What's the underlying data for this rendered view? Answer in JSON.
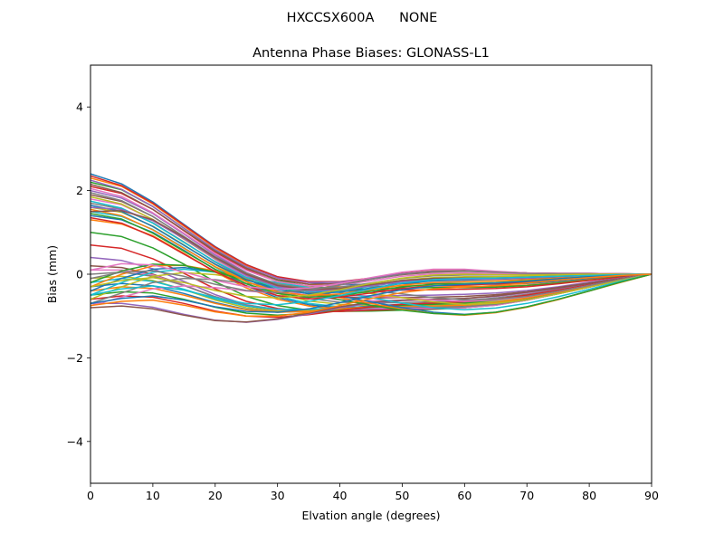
{
  "figure": {
    "suptitle": "HXCCSX600A      NONE"
  },
  "chart_data": {
    "type": "line",
    "title": "Antenna Phase Biases: GLONASS-L1",
    "xlabel": "Elvation angle (degrees)",
    "ylabel": "Bias (mm)",
    "xlim": [
      0,
      90
    ],
    "ylim": [
      -5,
      5
    ],
    "xticks": [
      0,
      10,
      20,
      30,
      40,
      50,
      60,
      70,
      80,
      90
    ],
    "yticks": [
      -4,
      -2,
      0,
      2,
      4
    ],
    "ytick_labels": [
      "−4",
      "−2",
      "0",
      "2",
      "4"
    ],
    "grid": false,
    "legend": "none",
    "palette": [
      "#1f77b4",
      "#ff7f0e",
      "#2ca02c",
      "#d62728",
      "#9467bd",
      "#8c564b",
      "#e377c2",
      "#7f7f7f",
      "#bcbd22",
      "#17becf"
    ],
    "x": [
      0,
      5,
      10,
      15,
      20,
      25,
      30,
      35,
      40,
      45,
      50,
      55,
      60,
      65,
      70,
      75,
      80,
      85,
      90
    ],
    "series": [
      {
        "values": [
          2.4,
          2.16,
          1.73,
          1.19,
          0.66,
          0.23,
          -0.06,
          -0.2,
          -0.25,
          -0.24,
          -0.22,
          -0.22,
          -0.23,
          -0.24,
          -0.22,
          -0.17,
          -0.11,
          -0.05,
          0.0
        ]
      },
      {
        "values": [
          2.3,
          2.1,
          1.68,
          1.15,
          0.63,
          0.2,
          -0.09,
          -0.24,
          -0.3,
          -0.3,
          -0.28,
          -0.28,
          -0.29,
          -0.29,
          -0.26,
          -0.2,
          -0.13,
          -0.06,
          0.0
        ]
      },
      {
        "values": [
          2.2,
          2.02,
          1.62,
          1.1,
          0.58,
          0.15,
          -0.14,
          -0.29,
          -0.35,
          -0.35,
          -0.33,
          -0.32,
          -0.32,
          -0.31,
          -0.27,
          -0.21,
          -0.14,
          -0.06,
          0.0
        ]
      },
      {
        "values": [
          2.1,
          1.93,
          1.55,
          1.04,
          0.53,
          0.11,
          -0.18,
          -0.34,
          -0.4,
          -0.4,
          -0.38,
          -0.37,
          -0.36,
          -0.34,
          -0.3,
          -0.23,
          -0.15,
          -0.07,
          0.0
        ]
      },
      {
        "values": [
          2.0,
          1.82,
          1.45,
          0.96,
          0.46,
          0.04,
          -0.26,
          -0.43,
          -0.51,
          -0.52,
          -0.51,
          -0.5,
          -0.48,
          -0.45,
          -0.39,
          -0.3,
          -0.19,
          -0.09,
          0.0
        ]
      },
      {
        "values": [
          1.9,
          1.74,
          1.38,
          0.9,
          0.41,
          -0.01,
          -0.3,
          -0.47,
          -0.55,
          -0.57,
          -0.56,
          -0.55,
          -0.53,
          -0.49,
          -0.42,
          -0.32,
          -0.21,
          -0.1,
          0.0
        ]
      },
      {
        "values": [
          1.8,
          1.66,
          1.31,
          0.84,
          0.35,
          -0.06,
          -0.35,
          -0.52,
          -0.61,
          -0.63,
          -0.62,
          -0.61,
          -0.58,
          -0.53,
          -0.45,
          -0.35,
          -0.23,
          -0.11,
          0.0
        ]
      },
      {
        "values": [
          1.7,
          1.56,
          1.23,
          0.77,
          0.29,
          -0.12,
          -0.41,
          -0.58,
          -0.67,
          -0.69,
          -0.68,
          -0.66,
          -0.63,
          -0.57,
          -0.48,
          -0.37,
          -0.24,
          -0.11,
          0.0
        ]
      },
      {
        "values": [
          1.6,
          1.48,
          1.15,
          0.7,
          0.23,
          -0.17,
          -0.46,
          -0.64,
          -0.72,
          -0.75,
          -0.74,
          -0.72,
          -0.68,
          -0.62,
          -0.52,
          -0.4,
          -0.26,
          -0.12,
          0.0
        ]
      },
      {
        "values": [
          1.5,
          1.38,
          1.07,
          0.63,
          0.17,
          -0.23,
          -0.52,
          -0.7,
          -0.78,
          -0.8,
          -0.79,
          -0.77,
          -0.72,
          -0.65,
          -0.55,
          -0.42,
          -0.27,
          -0.13,
          0.0
        ]
      },
      {
        "values": [
          1.4,
          1.3,
          1.0,
          0.57,
          0.11,
          -0.28,
          -0.56,
          -0.73,
          -0.81,
          -0.83,
          -0.82,
          -0.8,
          -0.75,
          -0.67,
          -0.56,
          -0.43,
          -0.28,
          -0.13,
          0.0
        ]
      },
      {
        "values": [
          1.3,
          1.2,
          0.92,
          0.5,
          0.05,
          -0.33,
          -0.6,
          -0.76,
          -0.84,
          -0.86,
          -0.85,
          -0.83,
          -0.78,
          -0.7,
          -0.58,
          -0.44,
          -0.29,
          -0.14,
          0.0
        ]
      },
      {
        "values": [
          1.0,
          0.9,
          0.63,
          0.24,
          -0.18,
          -0.53,
          -0.75,
          -0.86,
          -0.89,
          -0.88,
          -0.86,
          -0.84,
          -0.8,
          -0.72,
          -0.6,
          -0.46,
          -0.3,
          -0.14,
          0.0
        ]
      },
      {
        "values": [
          0.7,
          0.62,
          0.37,
          0.02,
          -0.35,
          -0.65,
          -0.82,
          -0.89,
          -0.89,
          -0.86,
          -0.84,
          -0.83,
          -0.8,
          -0.72,
          -0.61,
          -0.46,
          -0.3,
          -0.14,
          0.0
        ]
      },
      {
        "values": [
          0.4,
          0.33,
          0.13,
          -0.17,
          -0.49,
          -0.73,
          -0.85,
          -0.88,
          -0.86,
          -0.83,
          -0.82,
          -0.82,
          -0.8,
          -0.73,
          -0.62,
          -0.47,
          -0.31,
          -0.15,
          0.0
        ]
      },
      {
        "values": [
          0.2,
          0.16,
          0.0,
          -0.26,
          -0.55,
          -0.76,
          -0.86,
          -0.87,
          -0.84,
          -0.81,
          -0.8,
          -0.81,
          -0.8,
          -0.74,
          -0.62,
          -0.47,
          -0.31,
          -0.15,
          0.0
        ]
      },
      {
        "values": [
          0.1,
          0.1,
          -0.02,
          -0.26,
          -0.54,
          -0.75,
          -0.85,
          -0.86,
          -0.84,
          -0.81,
          -0.8,
          -0.81,
          -0.8,
          -0.74,
          -0.62,
          -0.47,
          -0.31,
          -0.15,
          0.0
        ]
      },
      {
        "values": [
          0.0,
          0.05,
          -0.05,
          -0.27,
          -0.54,
          -0.74,
          -0.84,
          -0.85,
          -0.82,
          -0.79,
          -0.78,
          -0.79,
          -0.78,
          -0.72,
          -0.61,
          -0.46,
          -0.3,
          -0.15,
          0.0
        ]
      },
      {
        "values": [
          -0.1,
          -0.05,
          -0.15,
          -0.37,
          -0.62,
          -0.8,
          -0.88,
          -0.87,
          -0.82,
          -0.77,
          -0.74,
          -0.73,
          -0.71,
          -0.65,
          -0.54,
          -0.41,
          -0.27,
          -0.13,
          0.0
        ]
      },
      {
        "values": [
          -0.2,
          -0.1,
          -0.17,
          -0.36,
          -0.59,
          -0.76,
          -0.84,
          -0.84,
          -0.8,
          -0.77,
          -0.76,
          -0.76,
          -0.74,
          -0.68,
          -0.57,
          -0.43,
          -0.28,
          -0.14,
          0.0
        ]
      },
      {
        "values": [
          -0.3,
          -0.22,
          -0.28,
          -0.46,
          -0.68,
          -0.84,
          -0.91,
          -0.89,
          -0.82,
          -0.76,
          -0.72,
          -0.7,
          -0.67,
          -0.61,
          -0.51,
          -0.39,
          -0.25,
          -0.12,
          0.0
        ]
      },
      {
        "values": [
          -0.4,
          -0.3,
          -0.34,
          -0.5,
          -0.7,
          -0.85,
          -0.91,
          -0.89,
          -0.83,
          -0.78,
          -0.76,
          -0.76,
          -0.74,
          -0.68,
          -0.57,
          -0.43,
          -0.28,
          -0.14,
          0.0
        ]
      },
      {
        "values": [
          -0.5,
          -0.42,
          -0.45,
          -0.6,
          -0.79,
          -0.93,
          -0.98,
          -0.94,
          -0.86,
          -0.79,
          -0.74,
          -0.72,
          -0.69,
          -0.62,
          -0.52,
          -0.4,
          -0.26,
          -0.13,
          0.0
        ]
      },
      {
        "values": [
          -0.6,
          -0.52,
          -0.55,
          -0.7,
          -0.88,
          -1.0,
          -1.03,
          -0.97,
          -0.87,
          -0.78,
          -0.72,
          -0.69,
          -0.66,
          -0.6,
          -0.5,
          -0.38,
          -0.25,
          -0.12,
          0.0
        ]
      },
      {
        "values": [
          -0.7,
          -0.7,
          -0.79,
          -0.96,
          -1.1,
          -1.15,
          -1.08,
          -0.95,
          -0.8,
          -0.69,
          -0.63,
          -0.61,
          -0.58,
          -0.53,
          -0.44,
          -0.34,
          -0.22,
          -0.11,
          0.0
        ]
      },
      {
        "values": [
          -0.8,
          -0.76,
          -0.83,
          -0.98,
          -1.11,
          -1.14,
          -1.07,
          -0.93,
          -0.78,
          -0.67,
          -0.62,
          -0.6,
          -0.58,
          -0.52,
          -0.43,
          -0.33,
          -0.22,
          -0.11,
          0.0
        ]
      },
      {
        "values": [
          -0.75,
          -0.55,
          -0.35,
          -0.28,
          -0.32,
          -0.4,
          -0.46,
          -0.49,
          -0.5,
          -0.52,
          -0.56,
          -0.62,
          -0.65,
          -0.62,
          -0.54,
          -0.41,
          -0.27,
          -0.13,
          0.0
        ]
      },
      {
        "values": [
          -0.7,
          -0.45,
          -0.2,
          -0.1,
          -0.13,
          -0.22,
          -0.28,
          -0.32,
          -0.35,
          -0.4,
          -0.47,
          -0.56,
          -0.61,
          -0.6,
          -0.53,
          -0.41,
          -0.27,
          -0.13,
          0.0
        ]
      },
      {
        "values": [
          -0.6,
          -0.3,
          -0.05,
          0.04,
          -0.01,
          -0.12,
          -0.22,
          -0.31,
          -0.38,
          -0.46,
          -0.56,
          -0.66,
          -0.72,
          -0.7,
          -0.61,
          -0.47,
          -0.31,
          -0.15,
          0.0
        ]
      },
      {
        "values": [
          -0.5,
          -0.2,
          0.05,
          0.12,
          0.05,
          -0.08,
          -0.2,
          -0.32,
          -0.44,
          -0.56,
          -0.69,
          -0.8,
          -0.85,
          -0.81,
          -0.7,
          -0.54,
          -0.36,
          -0.17,
          0.0
        ]
      },
      {
        "values": [
          -0.4,
          -0.1,
          0.12,
          0.16,
          0.06,
          -0.09,
          -0.24,
          -0.38,
          -0.52,
          -0.66,
          -0.8,
          -0.91,
          -0.96,
          -0.91,
          -0.78,
          -0.6,
          -0.4,
          -0.19,
          0.0
        ]
      },
      {
        "values": [
          -0.3,
          0.0,
          0.2,
          0.21,
          0.08,
          -0.1,
          -0.27,
          -0.42,
          -0.56,
          -0.7,
          -0.84,
          -0.94,
          -0.98,
          -0.92,
          -0.79,
          -0.61,
          -0.4,
          -0.2,
          0.0
        ]
      },
      {
        "values": [
          -0.2,
          0.08,
          0.24,
          0.21,
          0.05,
          -0.14,
          -0.32,
          -0.47,
          -0.61,
          -0.74,
          -0.86,
          -0.94,
          -0.97,
          -0.91,
          -0.78,
          -0.6,
          -0.4,
          -0.19,
          0.0
        ]
      },
      {
        "values": [
          2.35,
          2.12,
          1.7,
          1.17,
          0.65,
          0.23,
          -0.06,
          -0.18,
          -0.18,
          -0.09,
          0.02,
          0.08,
          0.09,
          0.06,
          0.03,
          0.02,
          0.02,
          0.01,
          0.0
        ]
      },
      {
        "values": [
          2.25,
          2.03,
          1.62,
          1.1,
          0.59,
          0.18,
          -0.09,
          -0.2,
          -0.19,
          -0.1,
          0.01,
          0.07,
          0.08,
          0.06,
          0.03,
          0.02,
          0.02,
          0.01,
          0.0
        ]
      },
      {
        "values": [
          2.15,
          1.95,
          1.55,
          1.05,
          0.55,
          0.14,
          -0.13,
          -0.24,
          -0.22,
          -0.12,
          -0.01,
          0.05,
          0.07,
          0.05,
          0.03,
          0.02,
          0.02,
          0.01,
          0.0
        ]
      },
      {
        "values": [
          2.05,
          1.86,
          1.47,
          0.98,
          0.49,
          0.09,
          -0.18,
          -0.28,
          -0.26,
          -0.16,
          -0.05,
          0.01,
          0.03,
          0.02,
          0.01,
          0.01,
          0.01,
          0.0,
          0.0
        ]
      },
      {
        "values": [
          1.95,
          1.76,
          1.38,
          0.9,
          0.42,
          0.03,
          -0.24,
          -0.34,
          -0.31,
          -0.21,
          -0.1,
          -0.04,
          -0.02,
          -0.02,
          -0.02,
          -0.01,
          0.0,
          0.0,
          0.0
        ]
      },
      {
        "values": [
          1.85,
          1.68,
          1.31,
          0.84,
          0.37,
          -0.02,
          -0.28,
          -0.38,
          -0.35,
          -0.25,
          -0.14,
          -0.08,
          -0.06,
          -0.06,
          -0.05,
          -0.03,
          -0.02,
          -0.01,
          0.0
        ]
      },
      {
        "values": [
          1.75,
          1.58,
          1.22,
          0.76,
          0.3,
          -0.08,
          -0.33,
          -0.42,
          -0.39,
          -0.29,
          -0.18,
          -0.12,
          -0.1,
          -0.09,
          -0.07,
          -0.05,
          -0.03,
          -0.01,
          0.0
        ]
      },
      {
        "values": [
          1.65,
          1.5,
          1.14,
          0.69,
          0.24,
          -0.13,
          -0.37,
          -0.46,
          -0.43,
          -0.33,
          -0.22,
          -0.16,
          -0.14,
          -0.12,
          -0.1,
          -0.07,
          -0.04,
          -0.02,
          0.0
        ]
      },
      {
        "values": [
          1.55,
          1.4,
          1.06,
          0.62,
          0.18,
          -0.18,
          -0.42,
          -0.51,
          -0.47,
          -0.37,
          -0.26,
          -0.2,
          -0.18,
          -0.16,
          -0.13,
          -0.09,
          -0.05,
          -0.02,
          0.0
        ]
      },
      {
        "values": [
          1.45,
          1.32,
          0.98,
          0.55,
          0.12,
          -0.23,
          -0.46,
          -0.55,
          -0.51,
          -0.41,
          -0.3,
          -0.24,
          -0.22,
          -0.2,
          -0.16,
          -0.11,
          -0.06,
          -0.03,
          0.0
        ]
      },
      {
        "values": [
          1.35,
          1.22,
          0.9,
          0.48,
          0.06,
          -0.28,
          -0.51,
          -0.59,
          -0.55,
          -0.45,
          -0.34,
          -0.28,
          -0.26,
          -0.23,
          -0.19,
          -0.13,
          -0.08,
          -0.03,
          0.0
        ]
      },
      {
        "values": [
          1.6,
          1.55,
          1.28,
          0.85,
          0.38,
          -0.03,
          -0.3,
          -0.4,
          -0.37,
          -0.28,
          -0.18,
          -0.13,
          -0.12,
          -0.11,
          -0.09,
          -0.06,
          -0.03,
          -0.01,
          0.0
        ]
      },
      {
        "values": [
          1.5,
          1.52,
          1.3,
          0.88,
          0.4,
          0.0,
          -0.27,
          -0.37,
          -0.34,
          -0.25,
          -0.15,
          -0.1,
          -0.09,
          -0.09,
          -0.07,
          -0.05,
          -0.03,
          -0.01,
          0.0
        ]
      },
      {
        "values": [
          0.1,
          0.25,
          0.22,
          0.05,
          -0.15,
          -0.3,
          -0.36,
          -0.33,
          -0.22,
          -0.08,
          0.05,
          0.12,
          0.12,
          0.07,
          0.03,
          0.02,
          0.02,
          0.01,
          0.0
        ]
      },
      {
        "values": [
          -0.1,
          0.05,
          0.08,
          -0.05,
          -0.24,
          -0.39,
          -0.44,
          -0.38,
          -0.26,
          -0.12,
          0.0,
          0.07,
          0.08,
          0.05,
          0.02,
          0.01,
          0.01,
          0.0,
          0.0
        ]
      },
      {
        "values": [
          -0.3,
          -0.15,
          -0.08,
          -0.2,
          -0.39,
          -0.53,
          -0.57,
          -0.5,
          -0.37,
          -0.22,
          -0.09,
          -0.02,
          0.0,
          -0.01,
          -0.02,
          -0.01,
          0.0,
          0.0,
          0.0
        ]
      },
      {
        "values": [
          -0.5,
          -0.35,
          -0.28,
          -0.38,
          -0.56,
          -0.7,
          -0.73,
          -0.65,
          -0.51,
          -0.35,
          -0.21,
          -0.13,
          -0.1,
          -0.09,
          -0.07,
          -0.05,
          -0.03,
          -0.01,
          0.0
        ]
      },
      {
        "values": [
          -0.7,
          -0.58,
          -0.52,
          -0.62,
          -0.78,
          -0.89,
          -0.91,
          -0.83,
          -0.68,
          -0.51,
          -0.37,
          -0.28,
          -0.24,
          -0.21,
          -0.17,
          -0.11,
          -0.06,
          -0.03,
          0.0
        ]
      },
      {
        "values": [
          -0.75,
          -0.65,
          -0.62,
          -0.74,
          -0.9,
          -1.0,
          -1.0,
          -0.91,
          -0.75,
          -0.58,
          -0.44,
          -0.35,
          -0.31,
          -0.27,
          -0.21,
          -0.14,
          -0.08,
          -0.03,
          0.0
        ]
      }
    ]
  }
}
